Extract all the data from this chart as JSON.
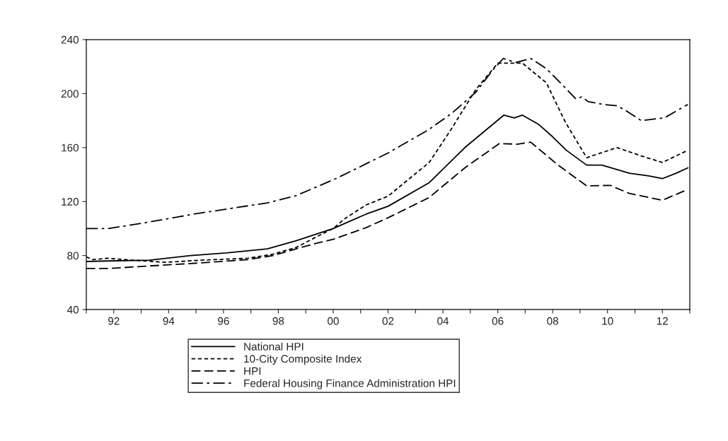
{
  "chart_data": {
    "type": "line",
    "xlim": [
      1991,
      2013
    ],
    "ylim": [
      40,
      240
    ],
    "xticks": [
      {
        "value": 1991,
        "label": null
      },
      {
        "value": 1992,
        "label": "92"
      },
      {
        "value": 1993,
        "label": null
      },
      {
        "value": 1994,
        "label": "94"
      },
      {
        "value": 1995,
        "label": null
      },
      {
        "value": 1996,
        "label": "96"
      },
      {
        "value": 1997,
        "label": null
      },
      {
        "value": 1998,
        "label": "98"
      },
      {
        "value": 1999,
        "label": null
      },
      {
        "value": 2000,
        "label": "00"
      },
      {
        "value": 2001,
        "label": null
      },
      {
        "value": 2002,
        "label": "02"
      },
      {
        "value": 2003,
        "label": null
      },
      {
        "value": 2004,
        "label": "04"
      },
      {
        "value": 2005,
        "label": null
      },
      {
        "value": 2006,
        "label": "06"
      },
      {
        "value": 2007,
        "label": null
      },
      {
        "value": 2008,
        "label": "08"
      },
      {
        "value": 2009,
        "label": null
      },
      {
        "value": 2010,
        "label": "10"
      },
      {
        "value": 2011,
        "label": null
      },
      {
        "value": 2012,
        "label": "12"
      },
      {
        "value": 2013,
        "label": null
      }
    ],
    "yticks": [
      40,
      80,
      120,
      160,
      200,
      240
    ],
    "grid": false,
    "legend": "bottom",
    "series": [
      {
        "name": "National HPI",
        "color": "#000000",
        "line_style": "solid",
        "x": [
          1991.0,
          1991.8,
          1993.3,
          1994.8,
          1996.1,
          1997.6,
          1998.65,
          2000.0,
          2001.2,
          2002.0,
          2003.5,
          2004.8,
          2006.22,
          2006.6,
          2006.9,
          2007.5,
          2008.0,
          2008.5,
          2009.24,
          2009.8,
          2010.3,
          2010.8,
          2011.5,
          2012.0,
          2012.5,
          2012.93
        ],
        "values": [
          75.6,
          76,
          76.6,
          80,
          82,
          85,
          91,
          100,
          110.7,
          116.5,
          134,
          160,
          184,
          182,
          184,
          177,
          168,
          158,
          147,
          147,
          144,
          141,
          139,
          137,
          141,
          145
        ]
      },
      {
        "name": "10-City Composite Index",
        "color": "#000000",
        "line_style": "dashed",
        "x": [
          1991.0,
          1991.25,
          1991.77,
          1992.65,
          1993.9,
          1995.2,
          1996.9,
          1997.8,
          1998.65,
          1999.5,
          2000.0,
          2000.4,
          2001.2,
          2002.0,
          2003.5,
          2004.3,
          2005.2,
          2006.0,
          2006.9,
          2007.77,
          2008.46,
          2009.24,
          2010.35,
          2011.2,
          2012.0,
          2012.93
        ],
        "values": [
          79,
          77,
          78,
          76.6,
          75,
          76.6,
          78,
          81,
          86,
          95,
          100,
          107,
          117.5,
          124,
          149,
          173.5,
          203,
          222.5,
          222.5,
          208,
          179,
          152.5,
          160,
          154,
          149,
          158
        ]
      },
      {
        "name": "HPI",
        "color": "#000000",
        "line_style": "longdash",
        "x": [
          1991.0,
          1991.8,
          1993.06,
          1995.2,
          1996.9,
          1997.8,
          1998.65,
          1999.5,
          2000.0,
          2001.2,
          2002.0,
          2003.5,
          2004.8,
          2006.06,
          2006.7,
          2007.2,
          2008.2,
          2009.24,
          2010.1,
          2010.8,
          2012.0,
          2012.93
        ],
        "values": [
          70.4,
          70.4,
          72,
          74.6,
          77,
          80,
          85,
          89.7,
          92,
          100.7,
          108,
          123,
          145,
          163,
          162.5,
          164,
          147,
          131.6,
          132,
          126,
          121,
          129
        ]
      },
      {
        "name": "Federal Housing Finance Administration HPI",
        "color": "#000000",
        "line_style": "dashdot",
        "x": [
          1991.0,
          1991.8,
          1993.06,
          1995.0,
          1997.6,
          1998.65,
          2000.1,
          2002.0,
          2003.5,
          2004.33,
          2005.2,
          2005.8,
          2006.2,
          2006.66,
          2007.2,
          2007.77,
          2008.28,
          2008.85,
          2009.06,
          2009.3,
          2009.83,
          2010.35,
          2010.7,
          2011.23,
          2012.08,
          2012.5,
          2012.93
        ],
        "values": [
          100,
          100,
          104,
          111,
          119,
          124.4,
          137,
          156,
          173.5,
          185.5,
          201,
          217,
          226,
          223,
          226,
          218.5,
          208,
          196,
          197.6,
          194,
          192,
          191,
          187,
          180,
          182,
          187,
          192
        ]
      }
    ]
  }
}
